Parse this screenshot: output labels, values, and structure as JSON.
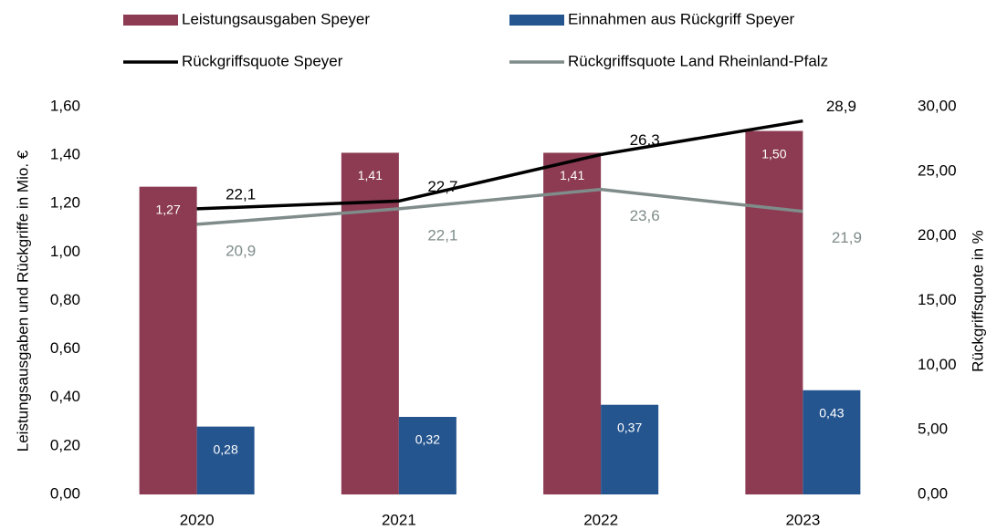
{
  "chart_data": {
    "type": "bar",
    "categories": [
      "2020",
      "2021",
      "2022",
      "2023"
    ],
    "y_label": "Leistungsausgaben und Rückgriffe in Mio. €",
    "y2_label": "Rückgriffsquote in %",
    "ylim": [
      0,
      1.6
    ],
    "yticks": [
      {
        "value": 0,
        "label": "0,00"
      },
      {
        "value": 0.2,
        "label": "0,20"
      },
      {
        "value": 0.4,
        "label": "0,40"
      },
      {
        "value": 0.6,
        "label": "0,60"
      },
      {
        "value": 0.8,
        "label": "0,80"
      },
      {
        "value": 1.0,
        "label": "1,00"
      },
      {
        "value": 1.2,
        "label": "1,20"
      },
      {
        "value": 1.4,
        "label": "1,40"
      },
      {
        "value": 1.6,
        "label": "1,60"
      }
    ],
    "y2lim": [
      0,
      30
    ],
    "y2ticks": [
      {
        "value": 0,
        "label": "0,00"
      },
      {
        "value": 5,
        "label": "5,00"
      },
      {
        "value": 10,
        "label": "10,00"
      },
      {
        "value": 15,
        "label": "15,00"
      },
      {
        "value": 20,
        "label": "20,00"
      },
      {
        "value": 25,
        "label": "25,00"
      },
      {
        "value": 30,
        "label": "30,00"
      }
    ],
    "series": [
      {
        "name": "Leistungsausgaben Speyer",
        "type": "bar",
        "color": "#8c3b52",
        "values": [
          1.27,
          1.41,
          1.41,
          1.5
        ],
        "value_labels": [
          "1,27",
          "1,41",
          "1,41",
          "1,50"
        ]
      },
      {
        "name": "Einnahmen aus Rückgriff Speyer",
        "type": "bar",
        "color": "#25558f",
        "values": [
          0.28,
          0.32,
          0.37,
          0.43
        ],
        "value_labels": [
          "0,28",
          "0,32",
          "0,37",
          "0,43"
        ]
      },
      {
        "name": "Rückgriffsquote Speyer",
        "type": "line",
        "axis": "y2",
        "color": "#000000",
        "values": [
          22.1,
          22.7,
          26.3,
          28.9
        ],
        "value_labels": [
          "22,1",
          "22,7",
          "26,3",
          "28,9"
        ]
      },
      {
        "name": "Rückgriffsquote Land Rheinland-Pfalz",
        "type": "line",
        "axis": "y2",
        "color": "#7f8c8a",
        "values": [
          20.9,
          22.1,
          23.6,
          21.9
        ],
        "value_labels": [
          "20,9",
          "22,1",
          "23,6",
          "21,9"
        ]
      }
    ]
  }
}
